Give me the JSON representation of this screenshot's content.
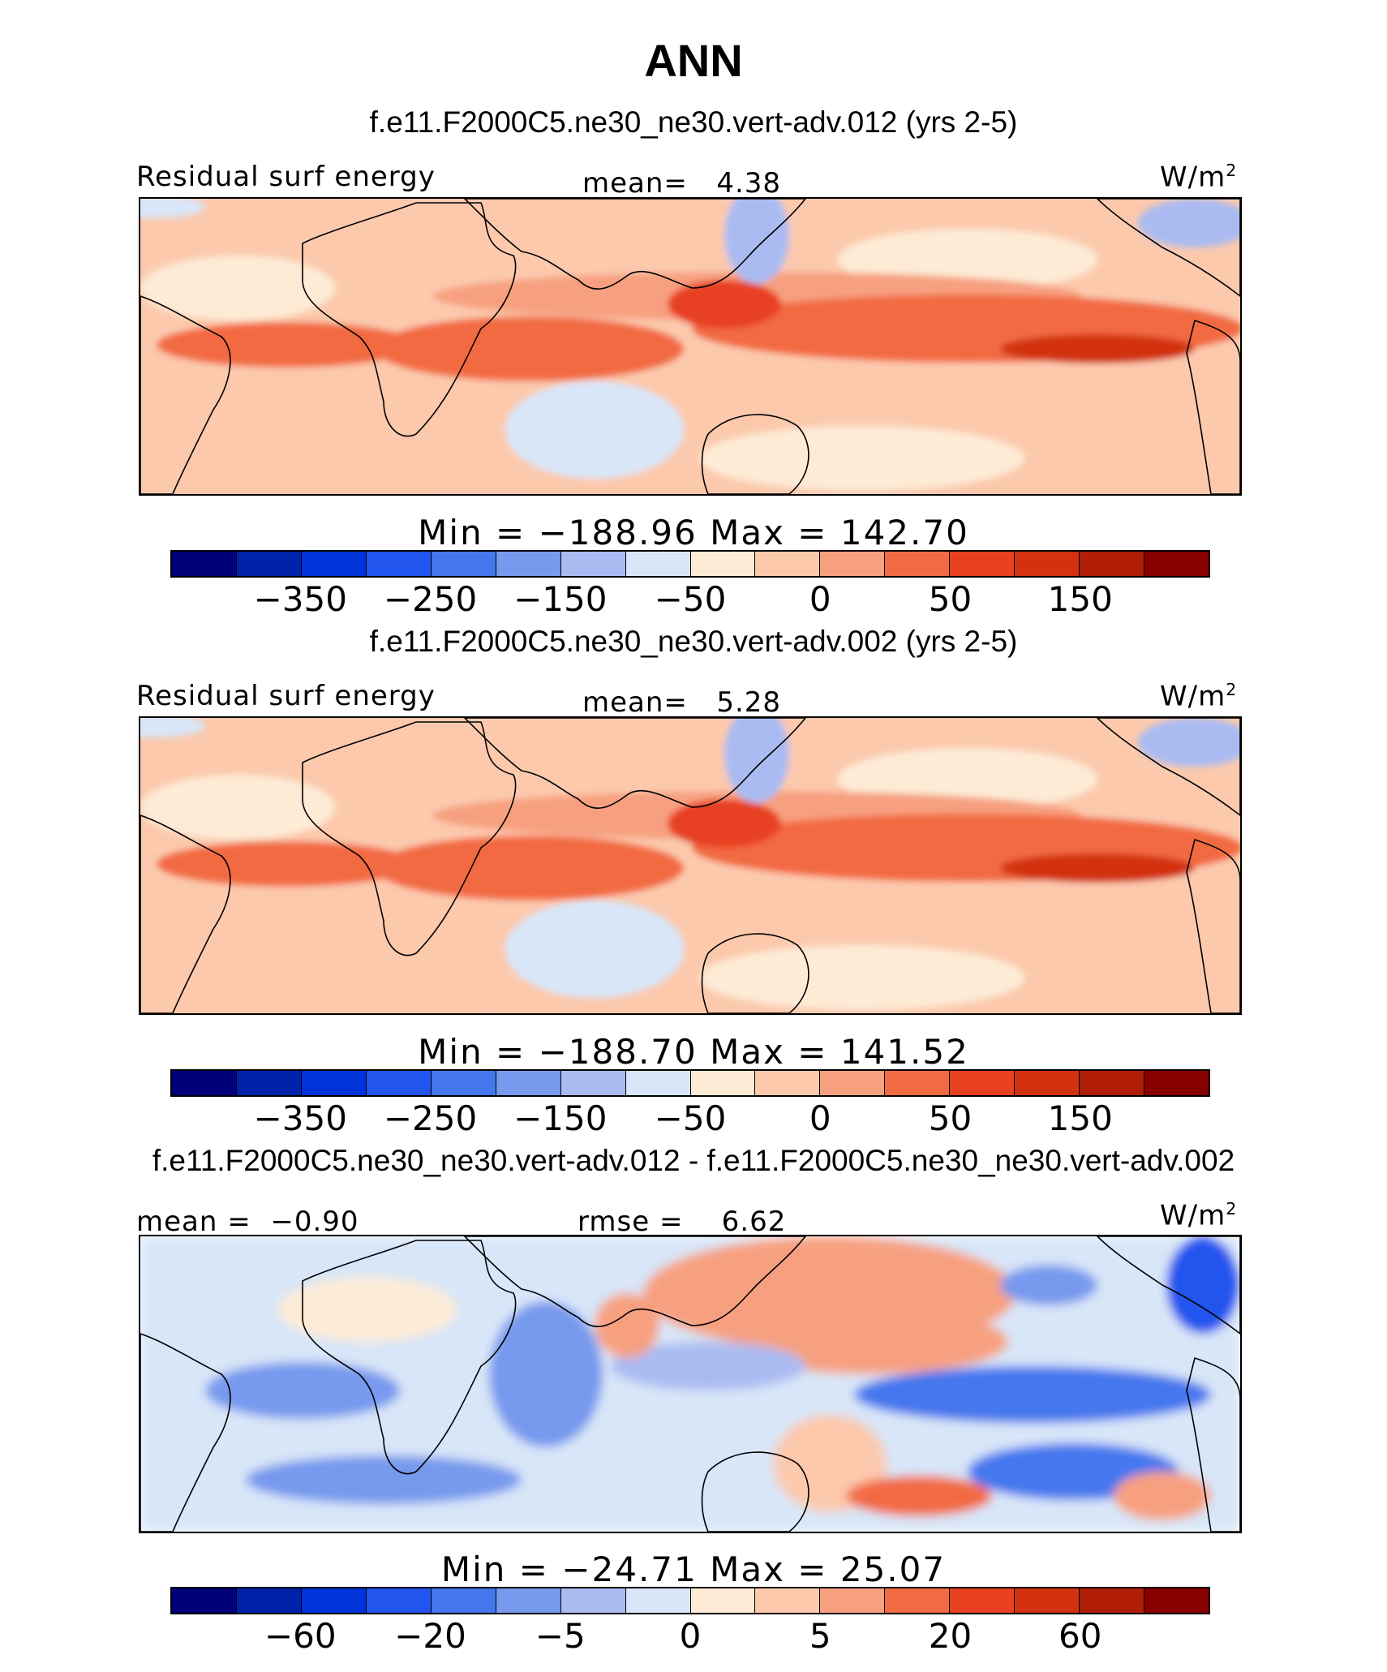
{
  "title": "ANN",
  "colors": [
    "#00007a",
    "#0022aa",
    "#0033d9",
    "#2255ee",
    "#4477ee",
    "#7799ee",
    "#aabbf2",
    "#d8e6f8",
    "#fdebd6",
    "#fcc9ad",
    "#f7a080",
    "#f26a42",
    "#e84020",
    "#d23210",
    "#b01e08",
    "#880000"
  ],
  "panels": [
    {
      "case": "f.e11.F2000C5.ne30_ne30.vert-adv.012 (yrs 2-5)",
      "variable": "Residual surf energy",
      "stat_label": "mean=",
      "stat_value": "4.38",
      "units_base": "W/m",
      "units_exp": "2",
      "min_label": "Min",
      "min_value": "-188.96",
      "max_label": "Max",
      "max_value": "142.70",
      "ticks": [
        "-350",
        "-250",
        "-150",
        "-50",
        "0",
        "50",
        "150"
      ],
      "pattern": "mean"
    },
    {
      "case": "f.e11.F2000C5.ne30_ne30.vert-adv.002 (yrs 2-5)",
      "variable": "Residual surf energy",
      "stat_label": "mean=",
      "stat_value": "5.28",
      "units_base": "W/m",
      "units_exp": "2",
      "min_label": "Min",
      "min_value": "-188.70",
      "max_label": "Max",
      "max_value": "141.52",
      "ticks": [
        "-350",
        "-250",
        "-150",
        "-50",
        "0",
        "50",
        "150"
      ],
      "pattern": "mean"
    },
    {
      "case": "f.e11.F2000C5.ne30_ne30.vert-adv.012 - f.e11.F2000C5.ne30_ne30.vert-adv.002",
      "variable": "",
      "left_label": "mean =",
      "left_value": "-0.90",
      "stat_label": "rmse =",
      "stat_value": "6.62",
      "units_base": "W/m",
      "units_exp": "2",
      "min_label": "Min",
      "min_value": "-24.71",
      "max_label": "Max",
      "max_value": "25.07",
      "ticks": [
        "-60",
        "-20",
        "-5",
        "0",
        "5",
        "20",
        "60"
      ],
      "pattern": "diff"
    }
  ],
  "chart_data": [
    {
      "type": "heatmap",
      "title": "f.e11.F2000C5.ne30_ne30.vert-adv.012 (yrs 2-5)",
      "variable": "Residual surf energy",
      "units": "W/m2",
      "mean": 4.38,
      "min": -188.96,
      "max": 142.7,
      "contour_levels": [
        -350,
        -300,
        -250,
        -200,
        -150,
        -100,
        -50,
        -25,
        0,
        25,
        50,
        100,
        150,
        200,
        250
      ],
      "labeled_ticks": [
        -350,
        -250,
        -150,
        -50,
        0,
        50,
        150
      ]
    },
    {
      "type": "heatmap",
      "title": "f.e11.F2000C5.ne30_ne30.vert-adv.002 (yrs 2-5)",
      "variable": "Residual surf energy",
      "units": "W/m2",
      "mean": 5.28,
      "min": -188.7,
      "max": 141.52,
      "contour_levels": [
        -350,
        -300,
        -250,
        -200,
        -150,
        -100,
        -50,
        -25,
        0,
        25,
        50,
        100,
        150,
        200,
        250
      ],
      "labeled_ticks": [
        -350,
        -250,
        -150,
        -50,
        0,
        50,
        150
      ]
    },
    {
      "type": "heatmap",
      "title": "f.e11.F2000C5.ne30_ne30.vert-adv.012 - f.e11.F2000C5.ne30_ne30.vert-adv.002",
      "units": "W/m2",
      "mean": -0.9,
      "rmse": 6.62,
      "min": -24.71,
      "max": 25.07,
      "contour_levels": [
        -60,
        -40,
        -20,
        -10,
        -5,
        -2,
        0,
        2,
        5,
        10,
        20,
        40,
        60
      ],
      "labeled_ticks": [
        -60,
        -20,
        -5,
        0,
        5,
        20,
        60
      ]
    }
  ]
}
